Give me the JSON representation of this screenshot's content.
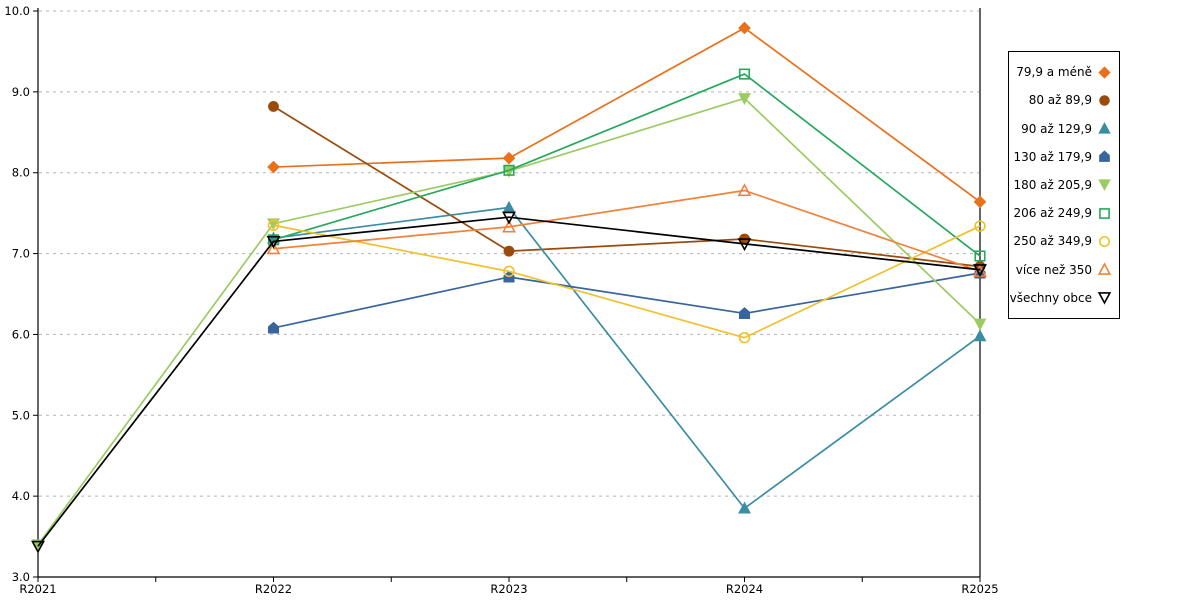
{
  "chart_data": {
    "type": "line",
    "title": "",
    "xlabel": "",
    "ylabel": "",
    "x": [
      "R2021",
      "R2022",
      "R2023",
      "R2024",
      "R2025"
    ],
    "ylim": [
      3.0,
      10.0
    ],
    "ytick_step": 1.0,
    "ytick_labels": [
      "3.0",
      "4.0",
      "5.0",
      "6.0",
      "7.0",
      "8.0",
      "9.0",
      "10.0"
    ],
    "grid": "horizontal-dashed",
    "gridline_color": "#b5b5b5",
    "axis_color": "#000000",
    "legend_position": "right",
    "series": [
      {
        "name": "79,9 a méně",
        "marker": "diamond",
        "filled": true,
        "color": "#E8711A",
        "values": [
          null,
          8.07,
          8.18,
          9.79,
          7.64
        ]
      },
      {
        "name": "80 až 89,9",
        "marker": "circle",
        "filled": true,
        "color": "#9C4A0B",
        "values": [
          null,
          8.82,
          7.03,
          7.18,
          6.84
        ]
      },
      {
        "name": "90 až 129,9",
        "marker": "triangle-up",
        "filled": true,
        "color": "#3A8DA5",
        "values": [
          null,
          7.19,
          7.57,
          3.85,
          5.98
        ]
      },
      {
        "name": "130 až 179,9",
        "marker": "pentagon",
        "filled": true,
        "color": "#38659B",
        "values": [
          null,
          6.08,
          6.71,
          6.26,
          6.76
        ]
      },
      {
        "name": "180 až 205,9",
        "marker": "triangle-down",
        "filled": true,
        "color": "#9CCB62",
        "values": [
          3.4,
          7.37,
          8.02,
          8.92,
          6.13
        ]
      },
      {
        "name": "206 až 249,9",
        "marker": "square",
        "filled": false,
        "color": "#27A85C",
        "values": [
          null,
          7.17,
          8.03,
          9.22,
          6.97
        ]
      },
      {
        "name": "250 až 349,9",
        "marker": "circle",
        "filled": false,
        "color": "#F0C12E",
        "values": [
          null,
          7.35,
          6.78,
          5.96,
          7.34
        ]
      },
      {
        "name": "více než 350",
        "marker": "triangle-up",
        "filled": false,
        "color": "#F0823C",
        "values": [
          null,
          7.06,
          7.33,
          7.78,
          6.78
        ]
      },
      {
        "name": "všechny obce",
        "marker": "triangle-down",
        "filled": false,
        "color": "#000000",
        "values": [
          3.38,
          7.15,
          7.45,
          7.12,
          6.8
        ]
      }
    ]
  }
}
